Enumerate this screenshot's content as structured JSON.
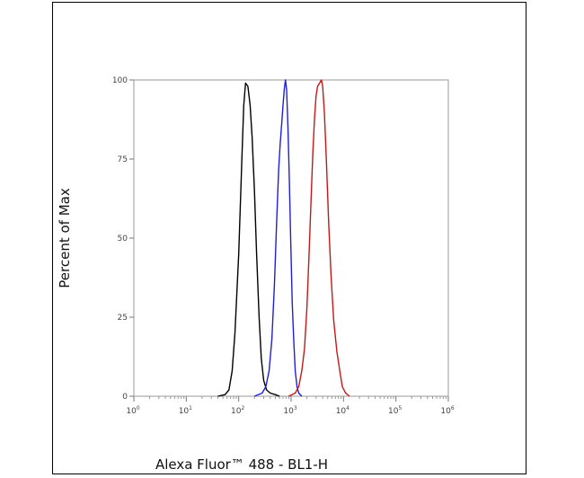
{
  "chart_data": {
    "type": "line",
    "title": "",
    "xlabel": "Alexa Fluor™ 488 - BL1-H",
    "ylabel": "Percent of Max",
    "x_scale": "log",
    "xlim": [
      1,
      1000000
    ],
    "ylim": [
      0,
      100
    ],
    "x_ticks": [
      {
        "value": 1,
        "base": "10",
        "exp": "0"
      },
      {
        "value": 10,
        "base": "10",
        "exp": "1"
      },
      {
        "value": 100,
        "base": "10",
        "exp": "2"
      },
      {
        "value": 1000,
        "base": "10",
        "exp": "3"
      },
      {
        "value": 10000,
        "base": "10",
        "exp": "4"
      },
      {
        "value": 100000,
        "base": "10",
        "exp": "5"
      },
      {
        "value": 1000000,
        "base": "10",
        "exp": "6"
      }
    ],
    "y_ticks": [
      0,
      25,
      50,
      75,
      100
    ],
    "grid": false,
    "legend": "none",
    "series": [
      {
        "color": "#000000",
        "points": [
          [
            40,
            0
          ],
          [
            55,
            0.5
          ],
          [
            65,
            2
          ],
          [
            75,
            8
          ],
          [
            85,
            20
          ],
          [
            100,
            45
          ],
          [
            115,
            75
          ],
          [
            125,
            92
          ],
          [
            135,
            99
          ],
          [
            150,
            98
          ],
          [
            165,
            92
          ],
          [
            180,
            82
          ],
          [
            200,
            65
          ],
          [
            220,
            45
          ],
          [
            245,
            25
          ],
          [
            270,
            12
          ],
          [
            300,
            5
          ],
          [
            340,
            2
          ],
          [
            400,
            1
          ],
          [
            500,
            0.5
          ],
          [
            600,
            0
          ]
        ]
      },
      {
        "color": "#1f1fd6",
        "points": [
          [
            200,
            0
          ],
          [
            280,
            1
          ],
          [
            330,
            3
          ],
          [
            380,
            8
          ],
          [
            430,
            18
          ],
          [
            480,
            35
          ],
          [
            530,
            55
          ],
          [
            580,
            72
          ],
          [
            620,
            80
          ],
          [
            660,
            86
          ],
          [
            700,
            92
          ],
          [
            740,
            97
          ],
          [
            780,
            100
          ],
          [
            820,
            97
          ],
          [
            870,
            85
          ],
          [
            920,
            70
          ],
          [
            980,
            50
          ],
          [
            1050,
            30
          ],
          [
            1120,
            18
          ],
          [
            1200,
            8
          ],
          [
            1300,
            3
          ],
          [
            1400,
            1
          ],
          [
            1600,
            0
          ]
        ]
      },
      {
        "color": "#c41818",
        "points": [
          [
            900,
            0
          ],
          [
            1200,
            1
          ],
          [
            1400,
            3
          ],
          [
            1600,
            8
          ],
          [
            1800,
            15
          ],
          [
            2000,
            28
          ],
          [
            2200,
            45
          ],
          [
            2400,
            62
          ],
          [
            2600,
            77
          ],
          [
            2800,
            88
          ],
          [
            3000,
            95
          ],
          [
            3200,
            98
          ],
          [
            3500,
            99
          ],
          [
            3800,
            100
          ],
          [
            4000,
            98
          ],
          [
            4300,
            90
          ],
          [
            4700,
            75
          ],
          [
            5200,
            55
          ],
          [
            5800,
            38
          ],
          [
            6500,
            24
          ],
          [
            7500,
            14
          ],
          [
            8500,
            8
          ],
          [
            9500,
            3
          ],
          [
            11000,
            1
          ],
          [
            13000,
            0
          ]
        ]
      }
    ]
  }
}
